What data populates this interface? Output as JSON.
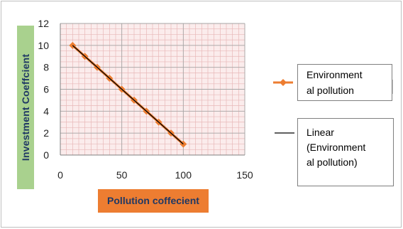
{
  "chart_data": {
    "type": "line",
    "x": [
      10,
      20,
      30,
      40,
      50,
      60,
      70,
      80,
      90,
      100
    ],
    "series": [
      {
        "name": "Environmental pollution",
        "values": [
          10,
          9,
          8,
          7,
          6,
          5,
          4,
          3,
          2,
          1
        ],
        "color": "#ed7d31",
        "marker": "diamond"
      },
      {
        "name": "Linear (Environmental pollution)",
        "values": [
          10,
          9,
          8,
          7,
          6,
          5,
          4,
          3,
          2,
          1
        ],
        "color": "#000000",
        "style": "trendline"
      }
    ],
    "xlabel": "Pollution coffecient",
    "ylabel": "Investment Coeffcient",
    "xlim": [
      0,
      150
    ],
    "ylim": [
      0,
      12
    ],
    "xticks": [
      "0",
      "50",
      "100",
      "150"
    ],
    "yticks": [
      "0",
      "2",
      "4",
      "6",
      "8",
      "10",
      "12"
    ],
    "grid": true,
    "legend_position": "right",
    "axis_label_colors": {
      "y_background": "#a9d18e",
      "x_background": "#ed7d31",
      "text": "#1f3864"
    }
  },
  "legend": {
    "series_line1": "Environment",
    "series_line2": "al pollution",
    "trend_line1": "Linear",
    "trend_line2": "(Environment",
    "trend_line3": "al pollution)"
  }
}
